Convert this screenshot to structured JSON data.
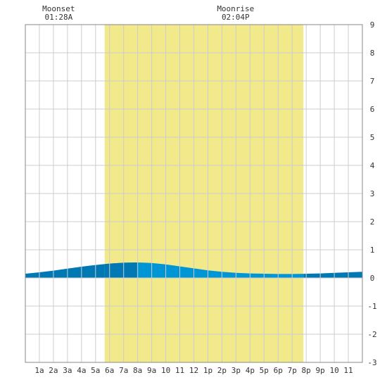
{
  "chart_data": {
    "type": "area",
    "title": "",
    "xlabel": "",
    "ylabel": "",
    "ylim": [
      -3,
      9
    ],
    "xlim": [
      0,
      24
    ],
    "yticks": [
      -3,
      -2,
      -1,
      0,
      1,
      2,
      3,
      4,
      5,
      6,
      7,
      8,
      9
    ],
    "grid": true,
    "x_tick_labels": [
      "1a",
      "2a",
      "3a",
      "4a",
      "5a",
      "6a",
      "7a",
      "8a",
      "9a",
      "10",
      "11",
      "12",
      "1p",
      "2p",
      "3p",
      "4p",
      "5p",
      "6p",
      "7p",
      "8p",
      "9p",
      "10",
      "11"
    ],
    "daylight": {
      "start_hour": 5.65,
      "end_hour": 19.8,
      "color": "#f2e98a"
    },
    "colors": {
      "tide_night": "#0078b4",
      "tide_day": "#0096d6",
      "grid": "#cccccc",
      "plot_background": "#ffffff"
    },
    "series": [
      {
        "x": [
          0,
          1,
          2,
          3,
          4,
          5,
          6,
          7,
          8,
          9,
          10,
          11,
          12,
          13,
          14,
          15,
          16,
          17,
          18,
          19,
          20,
          21,
          22,
          23,
          24
        ],
        "y": [
          0.15,
          0.2,
          0.26,
          0.33,
          0.4,
          0.46,
          0.51,
          0.54,
          0.55,
          0.53,
          0.48,
          0.41,
          0.34,
          0.27,
          0.22,
          0.18,
          0.16,
          0.15,
          0.14,
          0.14,
          0.15,
          0.16,
          0.18,
          0.2,
          0.22
        ]
      }
    ],
    "annotations": [
      {
        "label": "Moonset",
        "time": "01:28A",
        "hour": 1.47
      },
      {
        "label": "Moonrise",
        "time": "02:04P",
        "hour": 14.07
      }
    ]
  }
}
